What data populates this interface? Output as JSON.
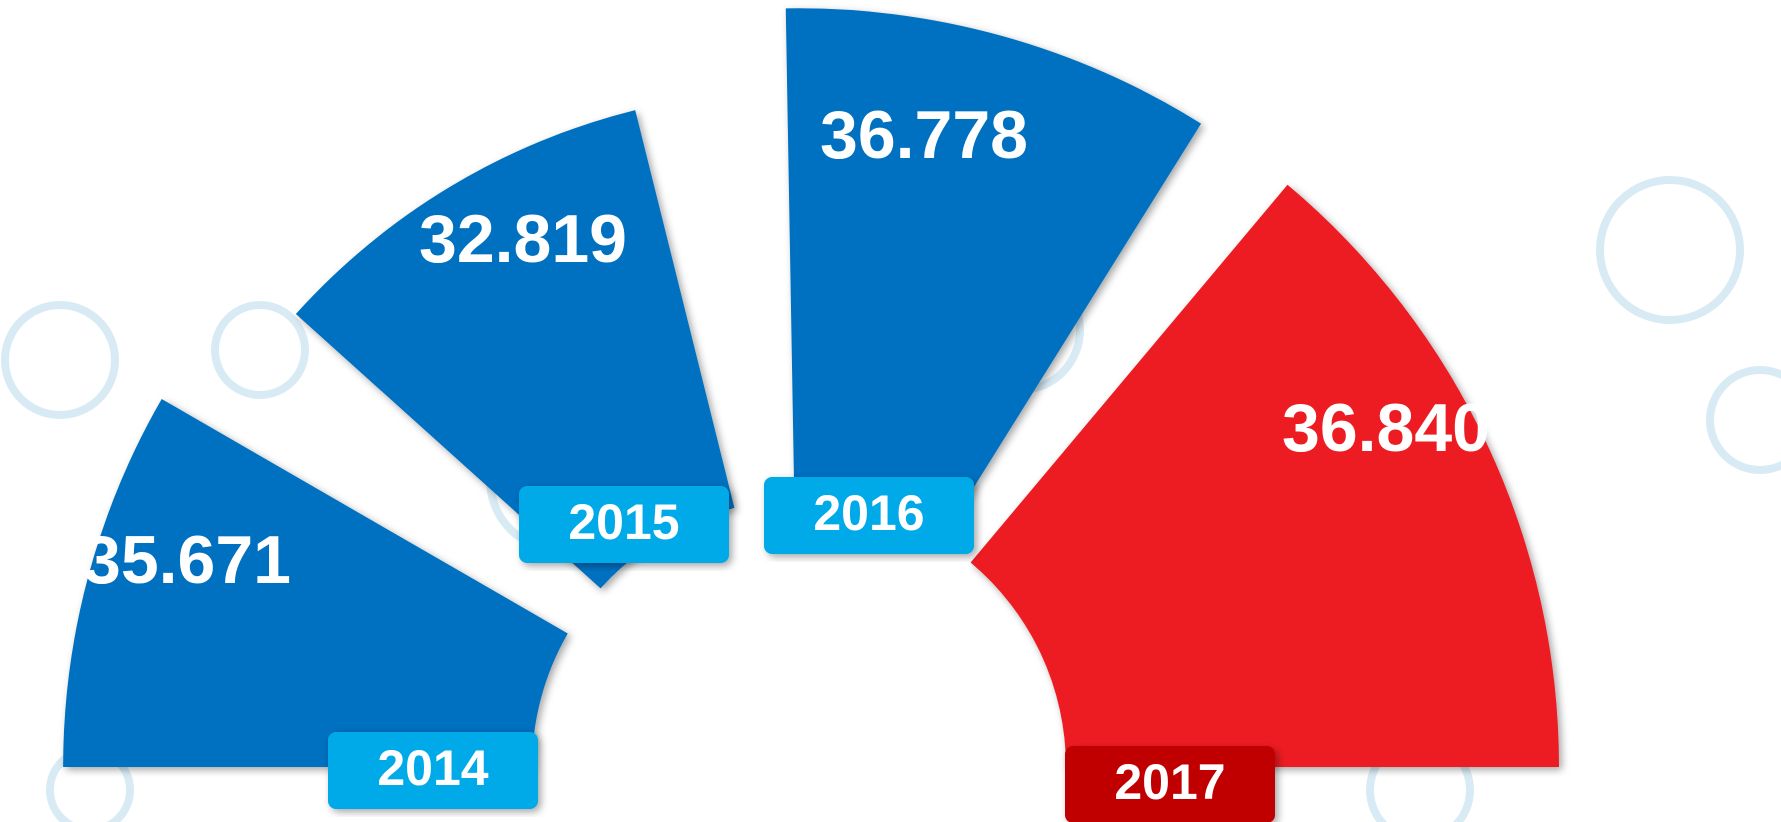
{
  "chart_data": {
    "type": "polar",
    "categories": [
      "2014",
      "2015",
      "2016",
      "2017"
    ],
    "values": [
      35.671,
      32.819,
      36.778,
      36.84
    ],
    "value_labels": [
      "35.671",
      "32.819",
      "36.778",
      "36.840"
    ],
    "colors": [
      "#0070c0",
      "#0070c0",
      "#0070c0",
      "#ed1c24"
    ],
    "label_colors": [
      "#00a9e8",
      "#00a9e8",
      "#00a9e8",
      "#c00000"
    ]
  }
}
